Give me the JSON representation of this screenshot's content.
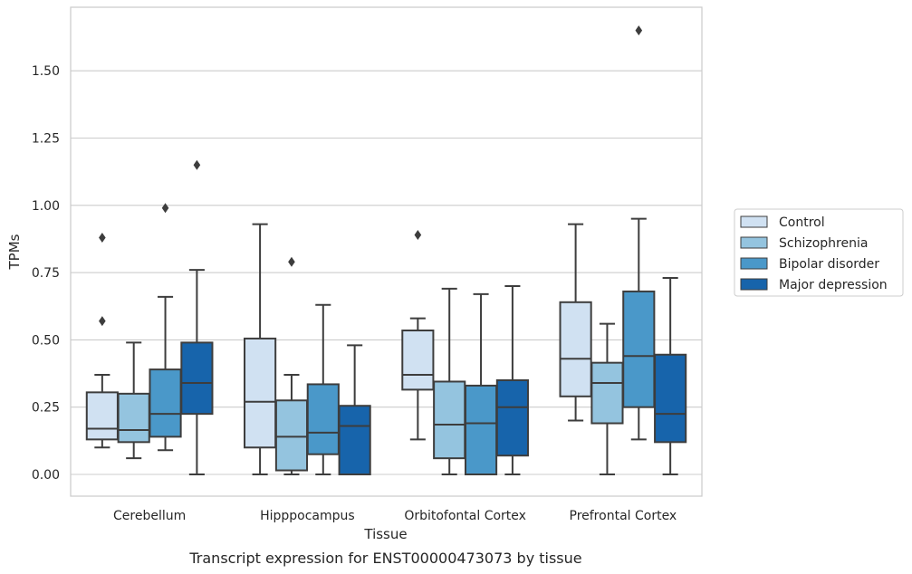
{
  "chart_data": {
    "type": "box",
    "caption": "Transcript expression for ENST00000473073 by tissue",
    "xlabel": "Tissue",
    "ylabel": "TPMs",
    "ylim": [
      -0.08,
      1.74
    ],
    "yticks": [
      "0.00",
      "0.25",
      "0.50",
      "0.75",
      "1.00",
      "1.25",
      "1.50"
    ],
    "grid": true,
    "legend_position": "right",
    "categories": [
      "Cerebellum",
      "Hipppocampus",
      "Orbitofontal Cortex",
      "Prefrontal Cortex"
    ],
    "series": [
      {
        "name": "Control",
        "color": "#d0e1f2",
        "boxes": [
          {
            "whislo": 0.1,
            "q1": 0.13,
            "med": 0.17,
            "q3": 0.305,
            "whishi": 0.37,
            "fliers": [
              0.57,
              0.88
            ]
          },
          {
            "whislo": 0.0,
            "q1": 0.1,
            "med": 0.27,
            "q3": 0.505,
            "whishi": 0.93,
            "fliers": []
          },
          {
            "whislo": 0.13,
            "q1": 0.315,
            "med": 0.37,
            "q3": 0.535,
            "whishi": 0.58,
            "fliers": [
              0.89
            ]
          },
          {
            "whislo": 0.2,
            "q1": 0.29,
            "med": 0.43,
            "q3": 0.64,
            "whishi": 0.93,
            "fliers": []
          }
        ]
      },
      {
        "name": "Schizophrenia",
        "color": "#94c4df",
        "boxes": [
          {
            "whislo": 0.06,
            "q1": 0.12,
            "med": 0.165,
            "q3": 0.3,
            "whishi": 0.49,
            "fliers": []
          },
          {
            "whislo": 0.0,
            "q1": 0.015,
            "med": 0.14,
            "q3": 0.275,
            "whishi": 0.37,
            "fliers": [
              0.79
            ]
          },
          {
            "whislo": 0.0,
            "q1": 0.06,
            "med": 0.185,
            "q3": 0.345,
            "whishi": 0.69,
            "fliers": []
          },
          {
            "whislo": 0.0,
            "q1": 0.19,
            "med": 0.34,
            "q3": 0.415,
            "whishi": 0.56,
            "fliers": []
          }
        ]
      },
      {
        "name": "Bipolar disorder",
        "color": "#4a98c9",
        "boxes": [
          {
            "whislo": 0.09,
            "q1": 0.14,
            "med": 0.225,
            "q3": 0.39,
            "whishi": 0.66,
            "fliers": [
              0.99
            ]
          },
          {
            "whislo": 0.0,
            "q1": 0.075,
            "med": 0.155,
            "q3": 0.335,
            "whishi": 0.63,
            "fliers": []
          },
          {
            "whislo": 0.0,
            "q1": 0.0,
            "med": 0.19,
            "q3": 0.33,
            "whishi": 0.67,
            "fliers": []
          },
          {
            "whislo": 0.13,
            "q1": 0.25,
            "med": 0.44,
            "q3": 0.68,
            "whishi": 0.95,
            "fliers": [
              1.65
            ]
          }
        ]
      },
      {
        "name": "Major depression",
        "color": "#1764ab",
        "boxes": [
          {
            "whislo": 0.0,
            "q1": 0.225,
            "med": 0.34,
            "q3": 0.49,
            "whishi": 0.76,
            "fliers": [
              1.15
            ]
          },
          {
            "whislo": 0.0,
            "q1": 0.0,
            "med": 0.18,
            "q3": 0.255,
            "whishi": 0.48,
            "fliers": []
          },
          {
            "whislo": 0.0,
            "q1": 0.07,
            "med": 0.25,
            "q3": 0.35,
            "whishi": 0.7,
            "fliers": []
          },
          {
            "whislo": 0.0,
            "q1": 0.12,
            "med": 0.225,
            "q3": 0.445,
            "whishi": 0.73,
            "fliers": []
          }
        ]
      }
    ]
  }
}
